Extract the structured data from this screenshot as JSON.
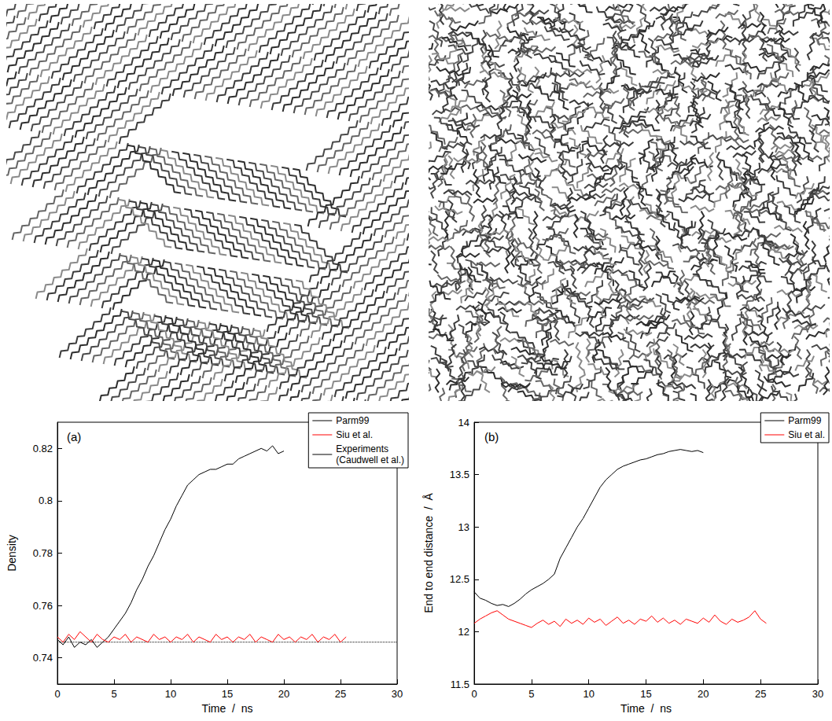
{
  "chart_data": [
    {
      "type": "line",
      "title": "(a)",
      "x_label": "Time  /  ns",
      "y_label": "Density",
      "xlim": [
        0,
        30
      ],
      "xticks": [
        0,
        5,
        10,
        15,
        20,
        25,
        30
      ],
      "ylim": [
        0.73,
        0.83
      ],
      "yticks": [
        0.74,
        0.76,
        0.78,
        0.8,
        0.82
      ],
      "grid": false,
      "legend": "top-right",
      "series": [
        {
          "name": "Parm99",
          "color": "#000000",
          "line_style": "solid",
          "x": [
            0,
            0.5,
            1,
            1.5,
            2,
            2.5,
            3,
            3.5,
            4,
            4.5,
            5,
            5.5,
            6,
            6.5,
            7,
            7.5,
            8,
            8.5,
            9,
            9.5,
            10,
            10.5,
            11,
            11.5,
            12,
            12.5,
            13,
            13.5,
            14,
            14.5,
            15,
            15.5,
            16,
            16.5,
            17,
            17.5,
            18,
            18.5,
            19,
            19.5,
            20
          ],
          "values": [
            0.747,
            0.745,
            0.748,
            0.744,
            0.746,
            0.745,
            0.747,
            0.744,
            0.746,
            0.748,
            0.751,
            0.754,
            0.757,
            0.761,
            0.766,
            0.77,
            0.775,
            0.779,
            0.784,
            0.789,
            0.793,
            0.798,
            0.802,
            0.806,
            0.808,
            0.81,
            0.811,
            0.812,
            0.812,
            0.813,
            0.814,
            0.814,
            0.816,
            0.817,
            0.818,
            0.819,
            0.82,
            0.819,
            0.821,
            0.818,
            0.819
          ]
        },
        {
          "name": "Siu et al.",
          "color": "#ff0000",
          "line_style": "solid",
          "x": [
            0,
            0.5,
            1,
            1.5,
            2,
            2.5,
            3,
            3.5,
            4,
            4.5,
            5,
            5.5,
            6,
            6.5,
            7,
            7.5,
            8,
            8.5,
            9,
            9.5,
            10,
            10.5,
            11,
            11.5,
            12,
            12.5,
            13,
            13.5,
            14,
            14.5,
            15,
            15.5,
            16,
            16.5,
            17,
            17.5,
            18,
            18.5,
            19,
            19.5,
            20,
            20.5,
            21,
            21.5,
            22,
            22.5,
            23,
            23.5,
            24,
            24.5,
            25,
            25.5
          ],
          "values": [
            0.748,
            0.746,
            0.749,
            0.747,
            0.75,
            0.748,
            0.746,
            0.749,
            0.747,
            0.746,
            0.748,
            0.747,
            0.749,
            0.746,
            0.748,
            0.747,
            0.746,
            0.749,
            0.747,
            0.748,
            0.746,
            0.748,
            0.747,
            0.749,
            0.746,
            0.748,
            0.747,
            0.746,
            0.749,
            0.747,
            0.748,
            0.746,
            0.748,
            0.747,
            0.749,
            0.746,
            0.748,
            0.747,
            0.746,
            0.749,
            0.747,
            0.748,
            0.746,
            0.748,
            0.747,
            0.749,
            0.746,
            0.748,
            0.747,
            0.749,
            0.746,
            0.748
          ]
        },
        {
          "name": "Experiments (Caudwell et al.)",
          "color": "#000000",
          "line_style": "dotted",
          "x": [
            0,
            30
          ],
          "values": [
            0.746,
            0.746
          ]
        }
      ]
    },
    {
      "type": "line",
      "title": "(b)",
      "x_label": "Time  /  ns",
      "y_label": "End to end distance  /  Å",
      "xlim": [
        0,
        30
      ],
      "xticks": [
        0,
        5,
        10,
        15,
        20,
        25,
        30
      ],
      "ylim": [
        11.5,
        14
      ],
      "yticks": [
        11.5,
        12,
        12.5,
        13,
        13.5,
        14
      ],
      "grid": false,
      "legend": "top-right",
      "series": [
        {
          "name": "Parm99",
          "color": "#000000",
          "line_style": "solid",
          "x": [
            0,
            0.5,
            1,
            1.5,
            2,
            2.5,
            3,
            3.5,
            4,
            4.5,
            5,
            5.5,
            6,
            6.5,
            7,
            7.5,
            8,
            8.5,
            9,
            9.5,
            10,
            10.5,
            11,
            11.5,
            12,
            12.5,
            13,
            13.5,
            14,
            14.5,
            15,
            15.5,
            16,
            16.5,
            17,
            17.5,
            18,
            18.5,
            19,
            19.5,
            20
          ],
          "values": [
            12.38,
            12.32,
            12.3,
            12.27,
            12.25,
            12.26,
            12.24,
            12.27,
            12.31,
            12.36,
            12.4,
            12.43,
            12.46,
            12.5,
            12.55,
            12.7,
            12.8,
            12.9,
            13.0,
            13.08,
            13.18,
            13.28,
            13.38,
            13.45,
            13.5,
            13.55,
            13.58,
            13.6,
            13.62,
            13.64,
            13.65,
            13.67,
            13.69,
            13.7,
            13.72,
            13.73,
            13.74,
            13.73,
            13.72,
            13.73,
            13.71
          ]
        },
        {
          "name": "Siu et al.",
          "color": "#ff0000",
          "line_style": "solid",
          "x": [
            0,
            0.5,
            1,
            1.5,
            2,
            2.5,
            3,
            3.5,
            4,
            4.5,
            5,
            5.5,
            6,
            6.5,
            7,
            7.5,
            8,
            8.5,
            9,
            9.5,
            10,
            10.5,
            11,
            11.5,
            12,
            12.5,
            13,
            13.5,
            14,
            14.5,
            15,
            15.5,
            16,
            16.5,
            17,
            17.5,
            18,
            18.5,
            19,
            19.5,
            20,
            20.5,
            21,
            21.5,
            22,
            22.5,
            23,
            23.5,
            24,
            24.5,
            25,
            25.5
          ],
          "values": [
            12.08,
            12.12,
            12.15,
            12.18,
            12.2,
            12.16,
            12.12,
            12.1,
            12.08,
            12.06,
            12.04,
            12.08,
            12.11,
            12.07,
            12.1,
            12.05,
            12.12,
            12.08,
            12.11,
            12.07,
            12.13,
            12.09,
            12.12,
            12.06,
            12.1,
            12.14,
            12.08,
            12.11,
            12.07,
            12.12,
            12.1,
            12.15,
            12.09,
            12.13,
            12.08,
            12.11,
            12.07,
            12.12,
            12.1,
            12.08,
            12.13,
            12.09,
            12.16,
            12.1,
            12.07,
            12.12,
            12.09,
            12.11,
            12.14,
            12.2,
            12.12,
            12.08
          ]
        }
      ]
    }
  ]
}
